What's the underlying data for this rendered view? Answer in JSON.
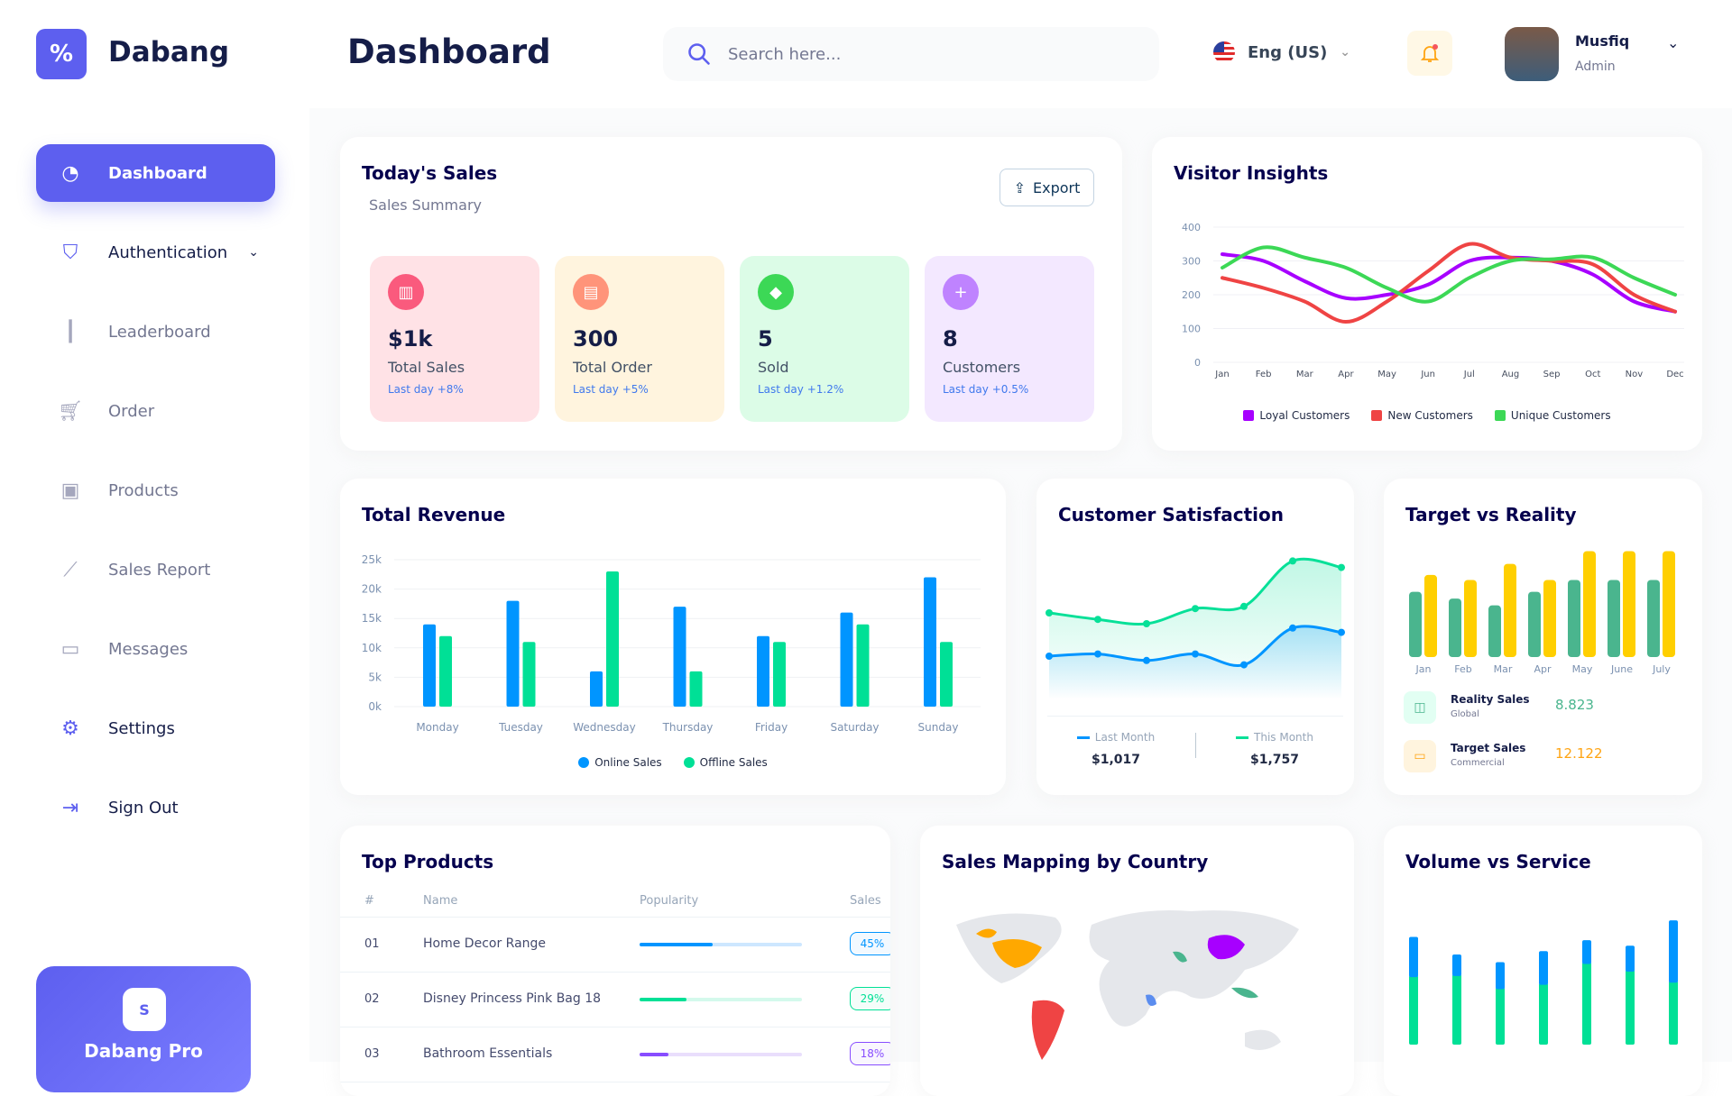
{
  "app": {
    "brand": "Dabang",
    "page_title": "Dashboard",
    "accent": "#5d5fef"
  },
  "header": {
    "search_placeholder": "Search here...",
    "language": "Eng (US)",
    "user_name": "Musfiq",
    "user_role": "Admin"
  },
  "sidebar": {
    "items": [
      {
        "label": "Dashboard",
        "icon": "pie-chart-icon",
        "active": true
      },
      {
        "label": "Authentication",
        "icon": "shield-icon",
        "has_chevron": true
      },
      {
        "label": "Leaderboard",
        "icon": "bar-chart-icon"
      },
      {
        "label": "Order",
        "icon": "cart-icon"
      },
      {
        "label": "Products",
        "icon": "bag-icon"
      },
      {
        "label": "Sales Report",
        "icon": "line-chart-icon"
      },
      {
        "label": "Messages",
        "icon": "message-icon"
      },
      {
        "label": "Settings",
        "icon": "gear-icon"
      },
      {
        "label": "Sign Out",
        "icon": "sign-out-icon"
      }
    ],
    "promo_title": "Dabang Pro"
  },
  "todays_sales": {
    "title": "Today's Sales",
    "subtitle": "Sales Summary",
    "export_label": "Export",
    "cards": [
      {
        "value": "$1k",
        "label": "Total Sales",
        "delta": "Last day +8%",
        "bg": "#ffe2e6",
        "icon_bg": "#fa5a7d",
        "icon": "chart-icon"
      },
      {
        "value": "300",
        "label": "Total Order",
        "delta": "Last day +5%",
        "bg": "#fff4de",
        "icon_bg": "#ff947a",
        "icon": "document-icon"
      },
      {
        "value": "5",
        "label": "Sold",
        "delta": "Last day +1.2%",
        "bg": "#dcfce7",
        "icon_bg": "#3cd856",
        "icon": "tag-icon"
      },
      {
        "value": "8",
        "label": "Customers",
        "delta": "Last day +0.5%",
        "bg": "#f3e8ff",
        "icon_bg": "#bf83ff",
        "icon": "add-user-icon"
      }
    ]
  },
  "chart_data": [
    {
      "id": "visitor",
      "type": "line",
      "title": "Visitor Insights",
      "categories": [
        "Jan",
        "Feb",
        "Mar",
        "Apr",
        "May",
        "Jun",
        "Jul",
        "Aug",
        "Sep",
        "Oct",
        "Nov",
        "Dec"
      ],
      "ylim": [
        0,
        400
      ],
      "yticks": [
        "0",
        "100",
        "200",
        "300",
        "400"
      ],
      "legend": "bottom",
      "grid": true,
      "series": [
        {
          "name": "Loyal Customers",
          "color": "#a700ff",
          "values": [
            320,
            300,
            240,
            190,
            200,
            230,
            300,
            310,
            300,
            260,
            180,
            150
          ]
        },
        {
          "name": "New Customers",
          "color": "#ef4444",
          "values": [
            250,
            220,
            180,
            120,
            180,
            270,
            350,
            310,
            300,
            290,
            200,
            150
          ]
        },
        {
          "name": "Unique Customers",
          "color": "#3cd856",
          "values": [
            280,
            340,
            310,
            280,
            220,
            180,
            250,
            300,
            305,
            310,
            250,
            200
          ]
        }
      ]
    },
    {
      "id": "revenue",
      "type": "bar",
      "title": "Total Revenue",
      "categories": [
        "Monday",
        "Tuesday",
        "Wednesday",
        "Thursday",
        "Friday",
        "Saturday",
        "Sunday"
      ],
      "ylim": [
        0,
        25000
      ],
      "yticks": [
        "0k",
        "5k",
        "10k",
        "15k",
        "20k",
        "25k"
      ],
      "legend": "bottom",
      "grid": true,
      "series": [
        {
          "name": "Online Sales",
          "color": "#0095ff",
          "values": [
            14000,
            18000,
            6000,
            17000,
            12000,
            16000,
            22000
          ]
        },
        {
          "name": "Offline Sales",
          "color": "#00e096",
          "values": [
            12000,
            11000,
            23000,
            6000,
            11000,
            14000,
            11000
          ]
        }
      ]
    },
    {
      "id": "satisfaction",
      "type": "area",
      "title": "Customer Satisfaction",
      "series": [
        {
          "name": "Last Month",
          "color": "#0095ff",
          "total": "$1,017",
          "values": [
            2.0,
            2.1,
            1.8,
            2.1,
            1.6,
            3.3,
            3.1
          ]
        },
        {
          "name": "This Month",
          "color": "#07e098",
          "total": "$1,757",
          "values": [
            4.0,
            3.7,
            3.5,
            4.2,
            4.3,
            6.4,
            6.1
          ]
        }
      ]
    },
    {
      "id": "target",
      "type": "bar",
      "title": "Target vs Reality",
      "categories": [
        "Jan",
        "Feb",
        "Mar",
        "Apr",
        "May",
        "June",
        "July"
      ],
      "series": [
        {
          "name": "Reality Sales",
          "color": "#4ab58e",
          "values": [
            7.7,
            6.9,
            6.1,
            7.7,
            9.1,
            9.1,
            9.1
          ]
        },
        {
          "name": "Target Sales",
          "color": "#ffcf00",
          "values": [
            9.7,
            9.1,
            11.0,
            9.1,
            12.5,
            12.5,
            12.5
          ]
        }
      ]
    },
    {
      "id": "volume",
      "type": "stacked-bar",
      "title": "Volume vs Service",
      "series": [
        {
          "name": "Volume",
          "color": "#00e096",
          "values": [
            63,
            64,
            52,
            56,
            75,
            68,
            58
          ]
        },
        {
          "name": "Services",
          "color": "#0095ff",
          "values": [
            35,
            18,
            23,
            29,
            20,
            22,
            55
          ]
        }
      ]
    }
  ],
  "target_summary": [
    {
      "label": "Reality Sales",
      "sub": "Global",
      "value": "8.823",
      "color": "#4ab58e",
      "bg": "#e2fff3",
      "icon": "bag-icon"
    },
    {
      "label": "Target Sales",
      "sub": "Commercial",
      "value": "12.122",
      "color": "#ffa412",
      "bg": "#fff4de",
      "icon": "ticket-icon"
    }
  ],
  "top_products": {
    "title": "Top Products",
    "columns": [
      "#",
      "Name",
      "Popularity",
      "Sales"
    ],
    "rows": [
      {
        "num": "01",
        "name": "Home Decor Range",
        "popularity": 45,
        "sales": "45%",
        "color": "#0095ff",
        "track": "#cde7ff"
      },
      {
        "num": "02",
        "name": "Disney Princess Pink Bag 18",
        "popularity": 29,
        "sales": "29%",
        "color": "#00e096",
        "track": "#d4f9ec"
      },
      {
        "num": "03",
        "name": "Bathroom Essentials",
        "popularity": 18,
        "sales": "18%",
        "color": "#884dff",
        "track": "#e9defc"
      }
    ]
  },
  "map": {
    "title": "Sales Mapping by Country"
  }
}
